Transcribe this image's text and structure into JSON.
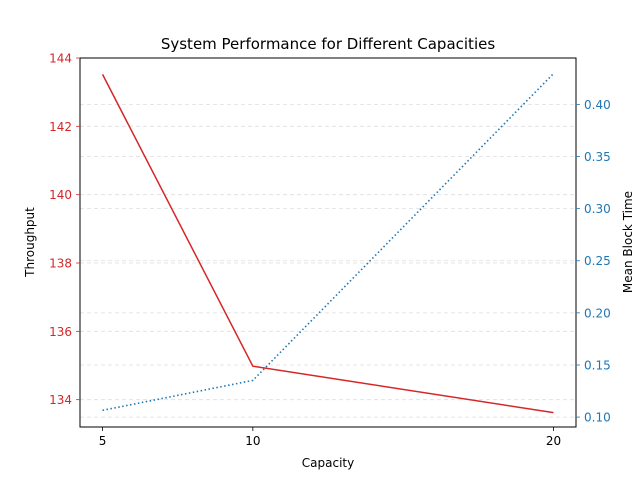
{
  "chart_data": {
    "type": "line",
    "title": "System Performance for Different Capacities",
    "xlabel": "Capacity",
    "x": [
      5,
      10,
      20
    ],
    "xticks": [
      "5",
      "10",
      "20"
    ],
    "xlim": [
      4.25,
      20.75
    ],
    "grid": {
      "axis": "y",
      "style": "dashed"
    },
    "left_axis": {
      "label": "Throughput",
      "color": "#d62728",
      "ylim": [
        133.2,
        144.0
      ],
      "ticks": [
        134,
        136,
        138,
        140,
        142,
        144
      ],
      "tick_labels": [
        "134",
        "136",
        "138",
        "140",
        "142",
        "144"
      ]
    },
    "right_axis": {
      "label": "Mean Block Time",
      "color": "#1f77b4",
      "ylim": [
        0.0905,
        0.4445
      ],
      "ticks": [
        0.1,
        0.15,
        0.2,
        0.25,
        0.3,
        0.35,
        0.4
      ],
      "tick_labels": [
        "0.10",
        "0.15",
        "0.20",
        "0.25",
        "0.30",
        "0.35",
        "0.40"
      ]
    },
    "series": [
      {
        "axis": "left",
        "color": "#d62728",
        "style": "solid",
        "values": [
          143.52,
          134.98,
          133.62
        ]
      },
      {
        "axis": "right",
        "color": "#1f77b4",
        "style": "dotted",
        "values": [
          0.1065,
          0.1352,
          0.4295
        ]
      }
    ]
  }
}
